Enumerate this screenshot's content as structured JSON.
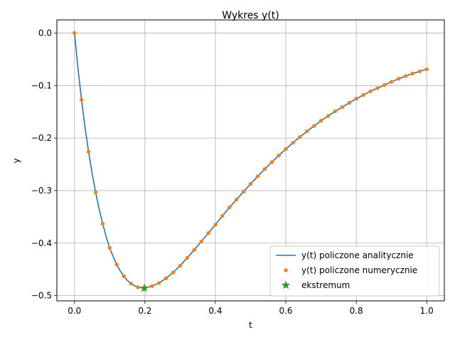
{
  "chart_data": {
    "type": "line",
    "title": "Wykres y(t)",
    "xlabel": "t",
    "ylabel": "y",
    "xlim": [
      -0.05,
      1.05
    ],
    "ylim": [
      -0.51,
      0.025
    ],
    "xticks": [
      0.0,
      0.2,
      0.4,
      0.6,
      0.8,
      1.0
    ],
    "xtick_labels": [
      "0.0",
      "0.2",
      "0.4",
      "0.6",
      "0.8",
      "1.0"
    ],
    "yticks": [
      0.0,
      -0.1,
      -0.2,
      -0.3,
      -0.4,
      -0.5
    ],
    "ytick_labels": [
      "0.0",
      "−0.1",
      "−0.2",
      "−0.3",
      "−0.4",
      "−0.5"
    ],
    "grid": true,
    "legend_position": "lower-right",
    "series": [
      {
        "name": "y(t) policzone analitycznie",
        "kind": "line",
        "color": "#1f77b4",
        "x": [
          0.0,
          0.01,
          0.02,
          0.03,
          0.04,
          0.05,
          0.06,
          0.07,
          0.08,
          0.09,
          0.1,
          0.11,
          0.12,
          0.13,
          0.14,
          0.15,
          0.16,
          0.17,
          0.18,
          0.19,
          0.2,
          0.22,
          0.24,
          0.26,
          0.28,
          0.3,
          0.32,
          0.34,
          0.36,
          0.38,
          0.4,
          0.42,
          0.44,
          0.46,
          0.48,
          0.5,
          0.52,
          0.54,
          0.56,
          0.58,
          0.6,
          0.62,
          0.64,
          0.66,
          0.68,
          0.7,
          0.72,
          0.74,
          0.76,
          0.78,
          0.8,
          0.82,
          0.84,
          0.86,
          0.88,
          0.9,
          0.92,
          0.94,
          0.96,
          0.98,
          1.0
        ],
        "y": [
          0.0,
          -0.068,
          -0.127,
          -0.18,
          -0.226,
          -0.267,
          -0.303,
          -0.335,
          -0.363,
          -0.388,
          -0.409,
          -0.426,
          -0.441,
          -0.453,
          -0.463,
          -0.471,
          -0.477,
          -0.481,
          -0.484,
          -0.485,
          -0.485,
          -0.482,
          -0.476,
          -0.467,
          -0.456,
          -0.443,
          -0.428,
          -0.413,
          -0.397,
          -0.381,
          -0.365,
          -0.348,
          -0.332,
          -0.317,
          -0.302,
          -0.287,
          -0.273,
          -0.259,
          -0.246,
          -0.233,
          -0.221,
          -0.209,
          -0.198,
          -0.187,
          -0.177,
          -0.167,
          -0.158,
          -0.149,
          -0.141,
          -0.133,
          -0.125,
          -0.118,
          -0.111,
          -0.105,
          -0.099,
          -0.093,
          -0.087,
          -0.082,
          -0.077,
          -0.073,
          -0.069
        ]
      },
      {
        "name": "y(t) policzone numerycznie",
        "kind": "markers",
        "color": "#ff7f0e",
        "x": [
          0.0,
          0.02,
          0.04,
          0.06,
          0.08,
          0.1,
          0.12,
          0.14,
          0.16,
          0.18,
          0.2,
          0.22,
          0.24,
          0.26,
          0.28,
          0.3,
          0.32,
          0.34,
          0.36,
          0.38,
          0.4,
          0.42,
          0.44,
          0.46,
          0.48,
          0.5,
          0.52,
          0.54,
          0.56,
          0.58,
          0.6,
          0.62,
          0.64,
          0.66,
          0.68,
          0.7,
          0.72,
          0.74,
          0.76,
          0.78,
          0.8,
          0.82,
          0.84,
          0.86,
          0.88,
          0.9,
          0.92,
          0.94,
          0.96,
          0.98,
          1.0
        ],
        "y": [
          0.0,
          -0.127,
          -0.226,
          -0.303,
          -0.363,
          -0.409,
          -0.441,
          -0.463,
          -0.477,
          -0.484,
          -0.485,
          -0.482,
          -0.476,
          -0.467,
          -0.456,
          -0.443,
          -0.428,
          -0.413,
          -0.397,
          -0.381,
          -0.365,
          -0.348,
          -0.332,
          -0.317,
          -0.302,
          -0.287,
          -0.273,
          -0.259,
          -0.246,
          -0.233,
          -0.221,
          -0.209,
          -0.198,
          -0.187,
          -0.177,
          -0.167,
          -0.158,
          -0.149,
          -0.141,
          -0.133,
          -0.125,
          -0.118,
          -0.111,
          -0.105,
          -0.099,
          -0.093,
          -0.087,
          -0.082,
          -0.077,
          -0.073,
          -0.069
        ]
      },
      {
        "name": "ekstremum",
        "kind": "star",
        "color": "#2ca02c",
        "x": [
          0.198
        ],
        "y": [
          -0.486
        ]
      }
    ]
  }
}
